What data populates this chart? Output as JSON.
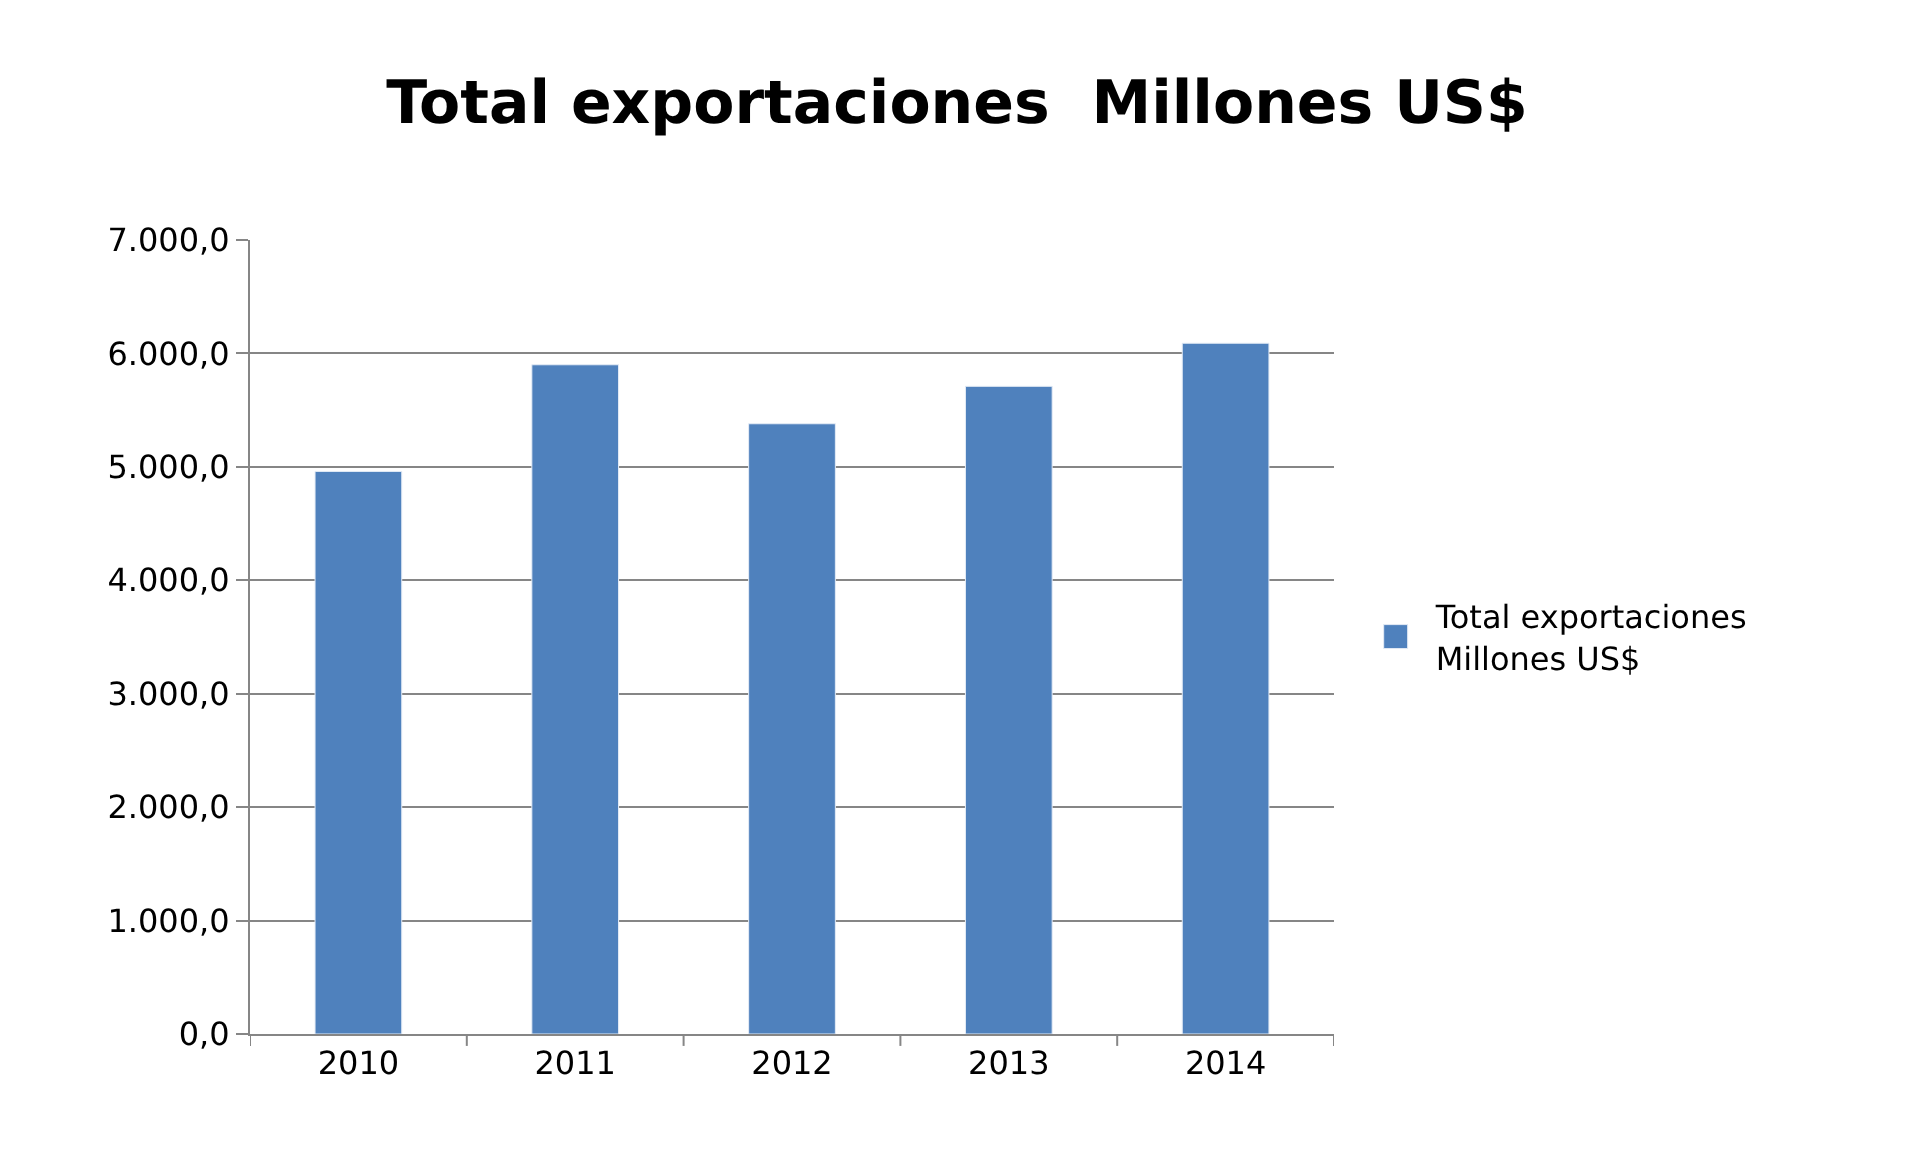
{
  "chart_data": {
    "type": "bar",
    "title": "Total exportaciones  Millones US$",
    "categories": [
      "2010",
      "2011",
      "2012",
      "2013",
      "2014"
    ],
    "series": [
      {
        "name": "Total exportaciones Millones US$",
        "color": "#4f81bd",
        "values": [
          4960,
          5900,
          5380,
          5710,
          6090
        ]
      }
    ],
    "ylim": [
      0,
      7000
    ],
    "yticks": [
      {
        "value": 0,
        "label": "0,0"
      },
      {
        "value": 1000,
        "label": "1.000,0"
      },
      {
        "value": 2000,
        "label": "2.000,0"
      },
      {
        "value": 3000,
        "label": "3.000,0"
      },
      {
        "value": 4000,
        "label": "4.000,0"
      },
      {
        "value": 5000,
        "label": "5.000,0"
      },
      {
        "value": 6000,
        "label": "6.000,0"
      },
      {
        "value": 7000,
        "label": "7.000,0"
      }
    ],
    "grid": "y",
    "legend": "right"
  }
}
